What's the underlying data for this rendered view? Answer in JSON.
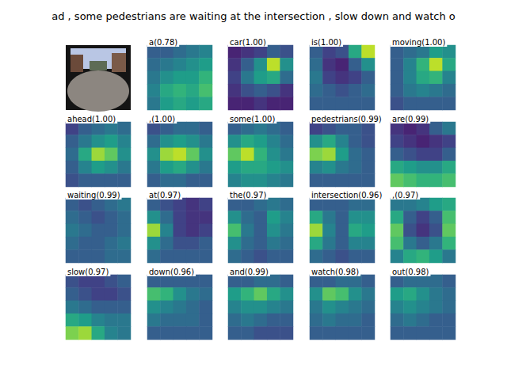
{
  "figure": {
    "title": "ad , some pedestrians are waiting at the intersection , slow down and watch o",
    "color_range": [
      0,
      1
    ]
  },
  "chart_data": [
    {
      "type": "image"
    },
    {
      "type": "heatmap",
      "title": "a(0.78)",
      "cells": [
        [
          0.3,
          0.3,
          0.35,
          0.4,
          0.45
        ],
        [
          0.35,
          0.4,
          0.45,
          0.5,
          0.55
        ],
        [
          0.4,
          0.5,
          0.55,
          0.55,
          0.65
        ],
        [
          0.45,
          0.6,
          0.65,
          0.6,
          0.7
        ],
        [
          0.4,
          0.55,
          0.6,
          0.55,
          0.6
        ]
      ]
    },
    {
      "type": "heatmap",
      "title": "car(1.00)",
      "cells": [
        [
          0.1,
          0.15,
          0.2,
          0.3,
          0.25
        ],
        [
          0.15,
          0.3,
          0.5,
          0.9,
          0.5
        ],
        [
          0.2,
          0.4,
          0.55,
          0.6,
          0.35
        ],
        [
          0.15,
          0.25,
          0.3,
          0.25,
          0.15
        ],
        [
          0.1,
          0.1,
          0.15,
          0.1,
          0.1
        ]
      ]
    },
    {
      "type": "heatmap",
      "title": "is(1.00)",
      "cells": [
        [
          0.3,
          0.2,
          0.25,
          0.6,
          0.9
        ],
        [
          0.35,
          0.15,
          0.1,
          0.3,
          0.5
        ],
        [
          0.4,
          0.2,
          0.15,
          0.2,
          0.3
        ],
        [
          0.35,
          0.3,
          0.25,
          0.3,
          0.35
        ],
        [
          0.3,
          0.3,
          0.3,
          0.3,
          0.3
        ]
      ]
    },
    {
      "type": "heatmap",
      "title": "moving(1.00)",
      "cells": [
        [
          0.3,
          0.35,
          0.4,
          0.55,
          0.5
        ],
        [
          0.3,
          0.45,
          0.65,
          0.9,
          0.6
        ],
        [
          0.3,
          0.45,
          0.6,
          0.65,
          0.45
        ],
        [
          0.3,
          0.4,
          0.45,
          0.4,
          0.35
        ],
        [
          0.25,
          0.3,
          0.3,
          0.3,
          0.3
        ]
      ]
    },
    {
      "type": "heatmap",
      "title": "ahead(1.00)",
      "cells": [
        [
          0.2,
          0.3,
          0.35,
          0.4,
          0.35
        ],
        [
          0.3,
          0.4,
          0.5,
          0.55,
          0.45
        ],
        [
          0.35,
          0.6,
          0.85,
          0.75,
          0.5
        ],
        [
          0.3,
          0.45,
          0.55,
          0.5,
          0.4
        ],
        [
          0.25,
          0.3,
          0.3,
          0.3,
          0.3
        ]
      ]
    },
    {
      "type": "heatmap",
      "title": ",(1.00)",
      "cells": [
        [
          0.25,
          0.3,
          0.35,
          0.35,
          0.3
        ],
        [
          0.35,
          0.5,
          0.55,
          0.5,
          0.4
        ],
        [
          0.5,
          0.85,
          0.9,
          0.75,
          0.5
        ],
        [
          0.4,
          0.55,
          0.6,
          0.5,
          0.4
        ],
        [
          0.3,
          0.35,
          0.35,
          0.3,
          0.3
        ]
      ]
    },
    {
      "type": "heatmap",
      "title": "some(1.00)",
      "cells": [
        [
          0.3,
          0.35,
          0.4,
          0.35,
          0.3
        ],
        [
          0.5,
          0.6,
          0.55,
          0.45,
          0.35
        ],
        [
          0.75,
          0.9,
          0.65,
          0.5,
          0.4
        ],
        [
          0.55,
          0.6,
          0.6,
          0.55,
          0.5
        ],
        [
          0.45,
          0.5,
          0.5,
          0.45,
          0.4
        ]
      ]
    },
    {
      "type": "heatmap",
      "title": "pedestrians(0.99)",
      "cells": [
        [
          0.2,
          0.25,
          0.3,
          0.3,
          0.25
        ],
        [
          0.5,
          0.6,
          0.45,
          0.3,
          0.25
        ],
        [
          0.8,
          0.85,
          0.55,
          0.35,
          0.3
        ],
        [
          0.45,
          0.5,
          0.4,
          0.35,
          0.3
        ],
        [
          0.3,
          0.3,
          0.3,
          0.3,
          0.3
        ]
      ]
    },
    {
      "type": "heatmap",
      "title": "are(0.99)",
      "cells": [
        [
          0.15,
          0.1,
          0.15,
          0.3,
          0.4
        ],
        [
          0.2,
          0.15,
          0.1,
          0.15,
          0.2
        ],
        [
          0.3,
          0.25,
          0.2,
          0.2,
          0.3
        ],
        [
          0.6,
          0.55,
          0.5,
          0.5,
          0.6
        ],
        [
          0.75,
          0.7,
          0.65,
          0.65,
          0.7
        ]
      ]
    },
    {
      "type": "heatmap",
      "title": "waiting(0.99)",
      "cells": [
        [
          0.3,
          0.25,
          0.3,
          0.35,
          0.4
        ],
        [
          0.35,
          0.3,
          0.25,
          0.3,
          0.35
        ],
        [
          0.4,
          0.35,
          0.3,
          0.3,
          0.35
        ],
        [
          0.35,
          0.3,
          0.3,
          0.35,
          0.4
        ],
        [
          0.3,
          0.3,
          0.3,
          0.35,
          0.35
        ]
      ]
    },
    {
      "type": "heatmap",
      "title": "at(0.97)",
      "cells": [
        [
          0.3,
          0.25,
          0.2,
          0.15,
          0.2
        ],
        [
          0.5,
          0.35,
          0.2,
          0.15,
          0.15
        ],
        [
          0.85,
          0.45,
          0.2,
          0.15,
          0.2
        ],
        [
          0.5,
          0.35,
          0.25,
          0.25,
          0.3
        ],
        [
          0.35,
          0.3,
          0.3,
          0.3,
          0.3
        ]
      ]
    },
    {
      "type": "heatmap",
      "title": "the(0.97)",
      "cells": [
        [
          0.3,
          0.3,
          0.35,
          0.4,
          0.35
        ],
        [
          0.5,
          0.35,
          0.3,
          0.55,
          0.45
        ],
        [
          0.7,
          0.4,
          0.3,
          0.5,
          0.4
        ],
        [
          0.5,
          0.35,
          0.3,
          0.4,
          0.35
        ],
        [
          0.35,
          0.3,
          0.25,
          0.3,
          0.3
        ]
      ]
    },
    {
      "type": "heatmap",
      "title": "intersection(0.96)",
      "cells": [
        [
          0.3,
          0.3,
          0.3,
          0.35,
          0.35
        ],
        [
          0.6,
          0.4,
          0.3,
          0.5,
          0.5
        ],
        [
          0.85,
          0.45,
          0.3,
          0.6,
          0.55
        ],
        [
          0.6,
          0.4,
          0.3,
          0.45,
          0.45
        ],
        [
          0.35,
          0.3,
          0.25,
          0.3,
          0.3
        ]
      ]
    },
    {
      "type": "heatmap",
      "title": ",(0.97)",
      "cells": [
        [
          0.4,
          0.4,
          0.45,
          0.55,
          0.6
        ],
        [
          0.6,
          0.3,
          0.2,
          0.3,
          0.7
        ],
        [
          0.75,
          0.25,
          0.15,
          0.25,
          0.75
        ],
        [
          0.7,
          0.4,
          0.3,
          0.4,
          0.65
        ],
        [
          0.45,
          0.6,
          0.65,
          0.55,
          0.4
        ]
      ]
    },
    {
      "type": "heatmap",
      "title": "slow(0.97)",
      "cells": [
        [
          0.25,
          0.2,
          0.2,
          0.25,
          0.3
        ],
        [
          0.3,
          0.25,
          0.2,
          0.2,
          0.25
        ],
        [
          0.4,
          0.35,
          0.3,
          0.3,
          0.3
        ],
        [
          0.6,
          0.55,
          0.45,
          0.4,
          0.4
        ],
        [
          0.8,
          0.85,
          0.6,
          0.45,
          0.4
        ]
      ]
    },
    {
      "type": "heatmap",
      "title": "down(0.96)",
      "cells": [
        [
          0.3,
          0.3,
          0.3,
          0.3,
          0.3
        ],
        [
          0.7,
          0.65,
          0.5,
          0.4,
          0.35
        ],
        [
          0.5,
          0.45,
          0.4,
          0.35,
          0.3
        ],
        [
          0.4,
          0.35,
          0.35,
          0.35,
          0.3
        ],
        [
          0.3,
          0.3,
          0.3,
          0.3,
          0.3
        ]
      ]
    },
    {
      "type": "heatmap",
      "title": "and(0.99)",
      "cells": [
        [
          0.3,
          0.3,
          0.35,
          0.35,
          0.3
        ],
        [
          0.55,
          0.65,
          0.75,
          0.6,
          0.5
        ],
        [
          0.45,
          0.5,
          0.5,
          0.45,
          0.4
        ],
        [
          0.35,
          0.4,
          0.35,
          0.3,
          0.3
        ],
        [
          0.3,
          0.3,
          0.25,
          0.25,
          0.25
        ]
      ]
    },
    {
      "type": "heatmap",
      "title": "watch(0.98)",
      "cells": [
        [
          0.3,
          0.3,
          0.35,
          0.35,
          0.3
        ],
        [
          0.5,
          0.75,
          0.7,
          0.5,
          0.4
        ],
        [
          0.4,
          0.5,
          0.45,
          0.4,
          0.35
        ],
        [
          0.35,
          0.4,
          0.35,
          0.35,
          0.3
        ],
        [
          0.3,
          0.3,
          0.3,
          0.3,
          0.3
        ]
      ]
    },
    {
      "type": "heatmap",
      "title": "out(0.98)",
      "cells": [
        [
          0.3,
          0.35,
          0.35,
          0.35,
          0.3
        ],
        [
          0.55,
          0.6,
          0.5,
          0.4,
          0.35
        ],
        [
          0.45,
          0.5,
          0.45,
          0.4,
          0.35
        ],
        [
          0.35,
          0.4,
          0.35,
          0.3,
          0.3
        ],
        [
          0.3,
          0.3,
          0.3,
          0.3,
          0.3
        ]
      ]
    }
  ]
}
